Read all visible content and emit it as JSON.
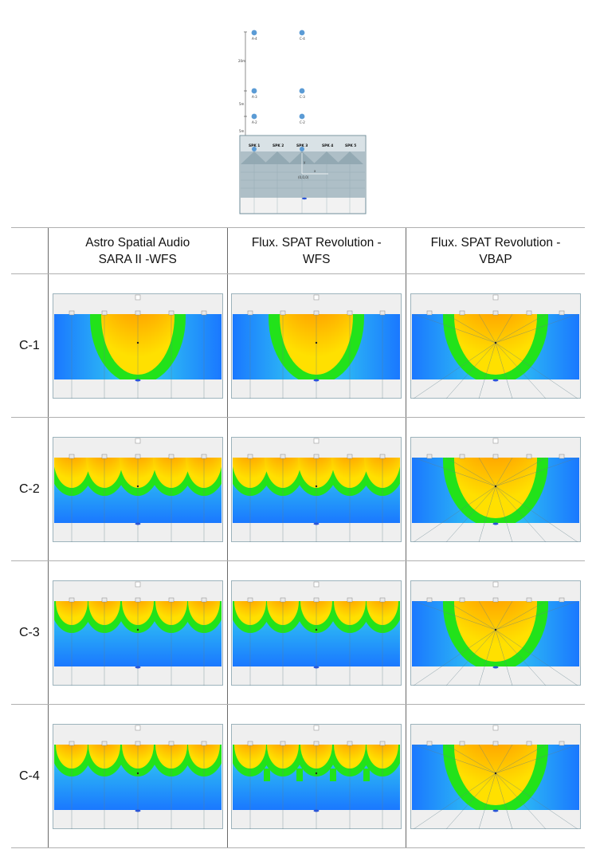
{
  "layout_diagram": {
    "speaker_positions": [
      {
        "row": "top",
        "labels": [
          "A-4",
          "C-4"
        ]
      },
      {
        "row": "mid",
        "labels": [
          "A-3",
          "C-3"
        ]
      },
      {
        "row": "low",
        "labels": [
          "A-2",
          "C-2"
        ]
      }
    ],
    "axis_ticks": [
      "20m",
      "5m",
      "5m"
    ],
    "speaker_labels": [
      "SPK 1",
      "SPK 2",
      "SPK 3",
      "SPK 4",
      "SPK 5"
    ],
    "axis_marks": [
      "y",
      "x"
    ],
    "origin_label": "(0,0,0)",
    "colors": {
      "marker": "#5b9bd5",
      "stage": "#b4c6cf",
      "stage_border": "#7f9aa6"
    }
  },
  "table": {
    "columns": [
      "",
      "Astro Spatial Audio SARA II -WFS",
      "Flux. SPAT Revolution - WFS",
      "Flux. SPAT Revolution - VBAP"
    ],
    "column_lines": [
      [
        "Astro Spatial Audio",
        "SARA II -WFS"
      ],
      [
        "Flux. SPAT Revolution -",
        "WFS"
      ],
      [
        "Flux. SPAT Revolution -",
        "VBAP"
      ]
    ],
    "rows": [
      "C-1",
      "C-2",
      "C-3",
      "C-4"
    ],
    "cell_modes": [
      [
        "single",
        "single",
        "vbap"
      ],
      [
        "multi-wide",
        "multi-wide",
        "vbap"
      ],
      [
        "multi",
        "multi",
        "vbap"
      ],
      [
        "multi",
        "multi-jag",
        "vbap"
      ]
    ]
  },
  "colors": {
    "field_blue": "#1a78ff",
    "field_cyan": "#35d5f0",
    "contour_green": "#22e21a",
    "yellow": "#ffe000",
    "orange": "#ff9400",
    "red": "#f22810",
    "frame_gray": "#efefef"
  }
}
